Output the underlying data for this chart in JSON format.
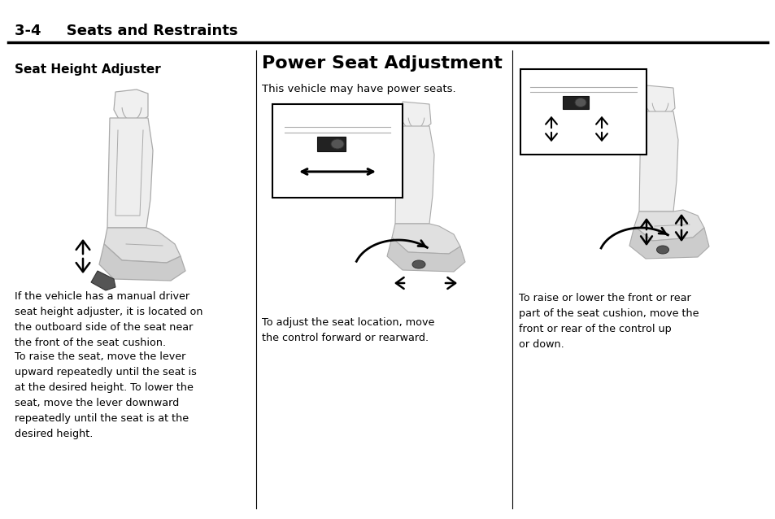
{
  "bg_color": "#ffffff",
  "header_text": "3-4     Seats and Restraints",
  "section1_title": "Seat Height Adjuster",
  "section2_title": "Power Seat Adjustment",
  "section2_subtitle": "This vehicle may have power seats.",
  "section1_para1": "If the vehicle has a manual driver\nseat height adjuster, it is located on\nthe outboard side of the seat near\nthe front of the seat cushion.",
  "section1_para2": "To raise the seat, move the lever\nupward repeatedly until the seat is\nat the desired height. To lower the\nseat, move the lever downward\nrepeatedly until the seat is at the\ndesired height.",
  "section2_caption": "To adjust the seat location, move\nthe control forward or rearward.",
  "section3_caption": "To raise or lower the front or rear\npart of the seat cushion, move the\nfront or rear of the control up\nor down.",
  "text_color": "#000000",
  "seat_edge_color": "#aaaaaa",
  "seat_fill_color": "#e8e8e8",
  "seat_dark_color": "#cccccc"
}
